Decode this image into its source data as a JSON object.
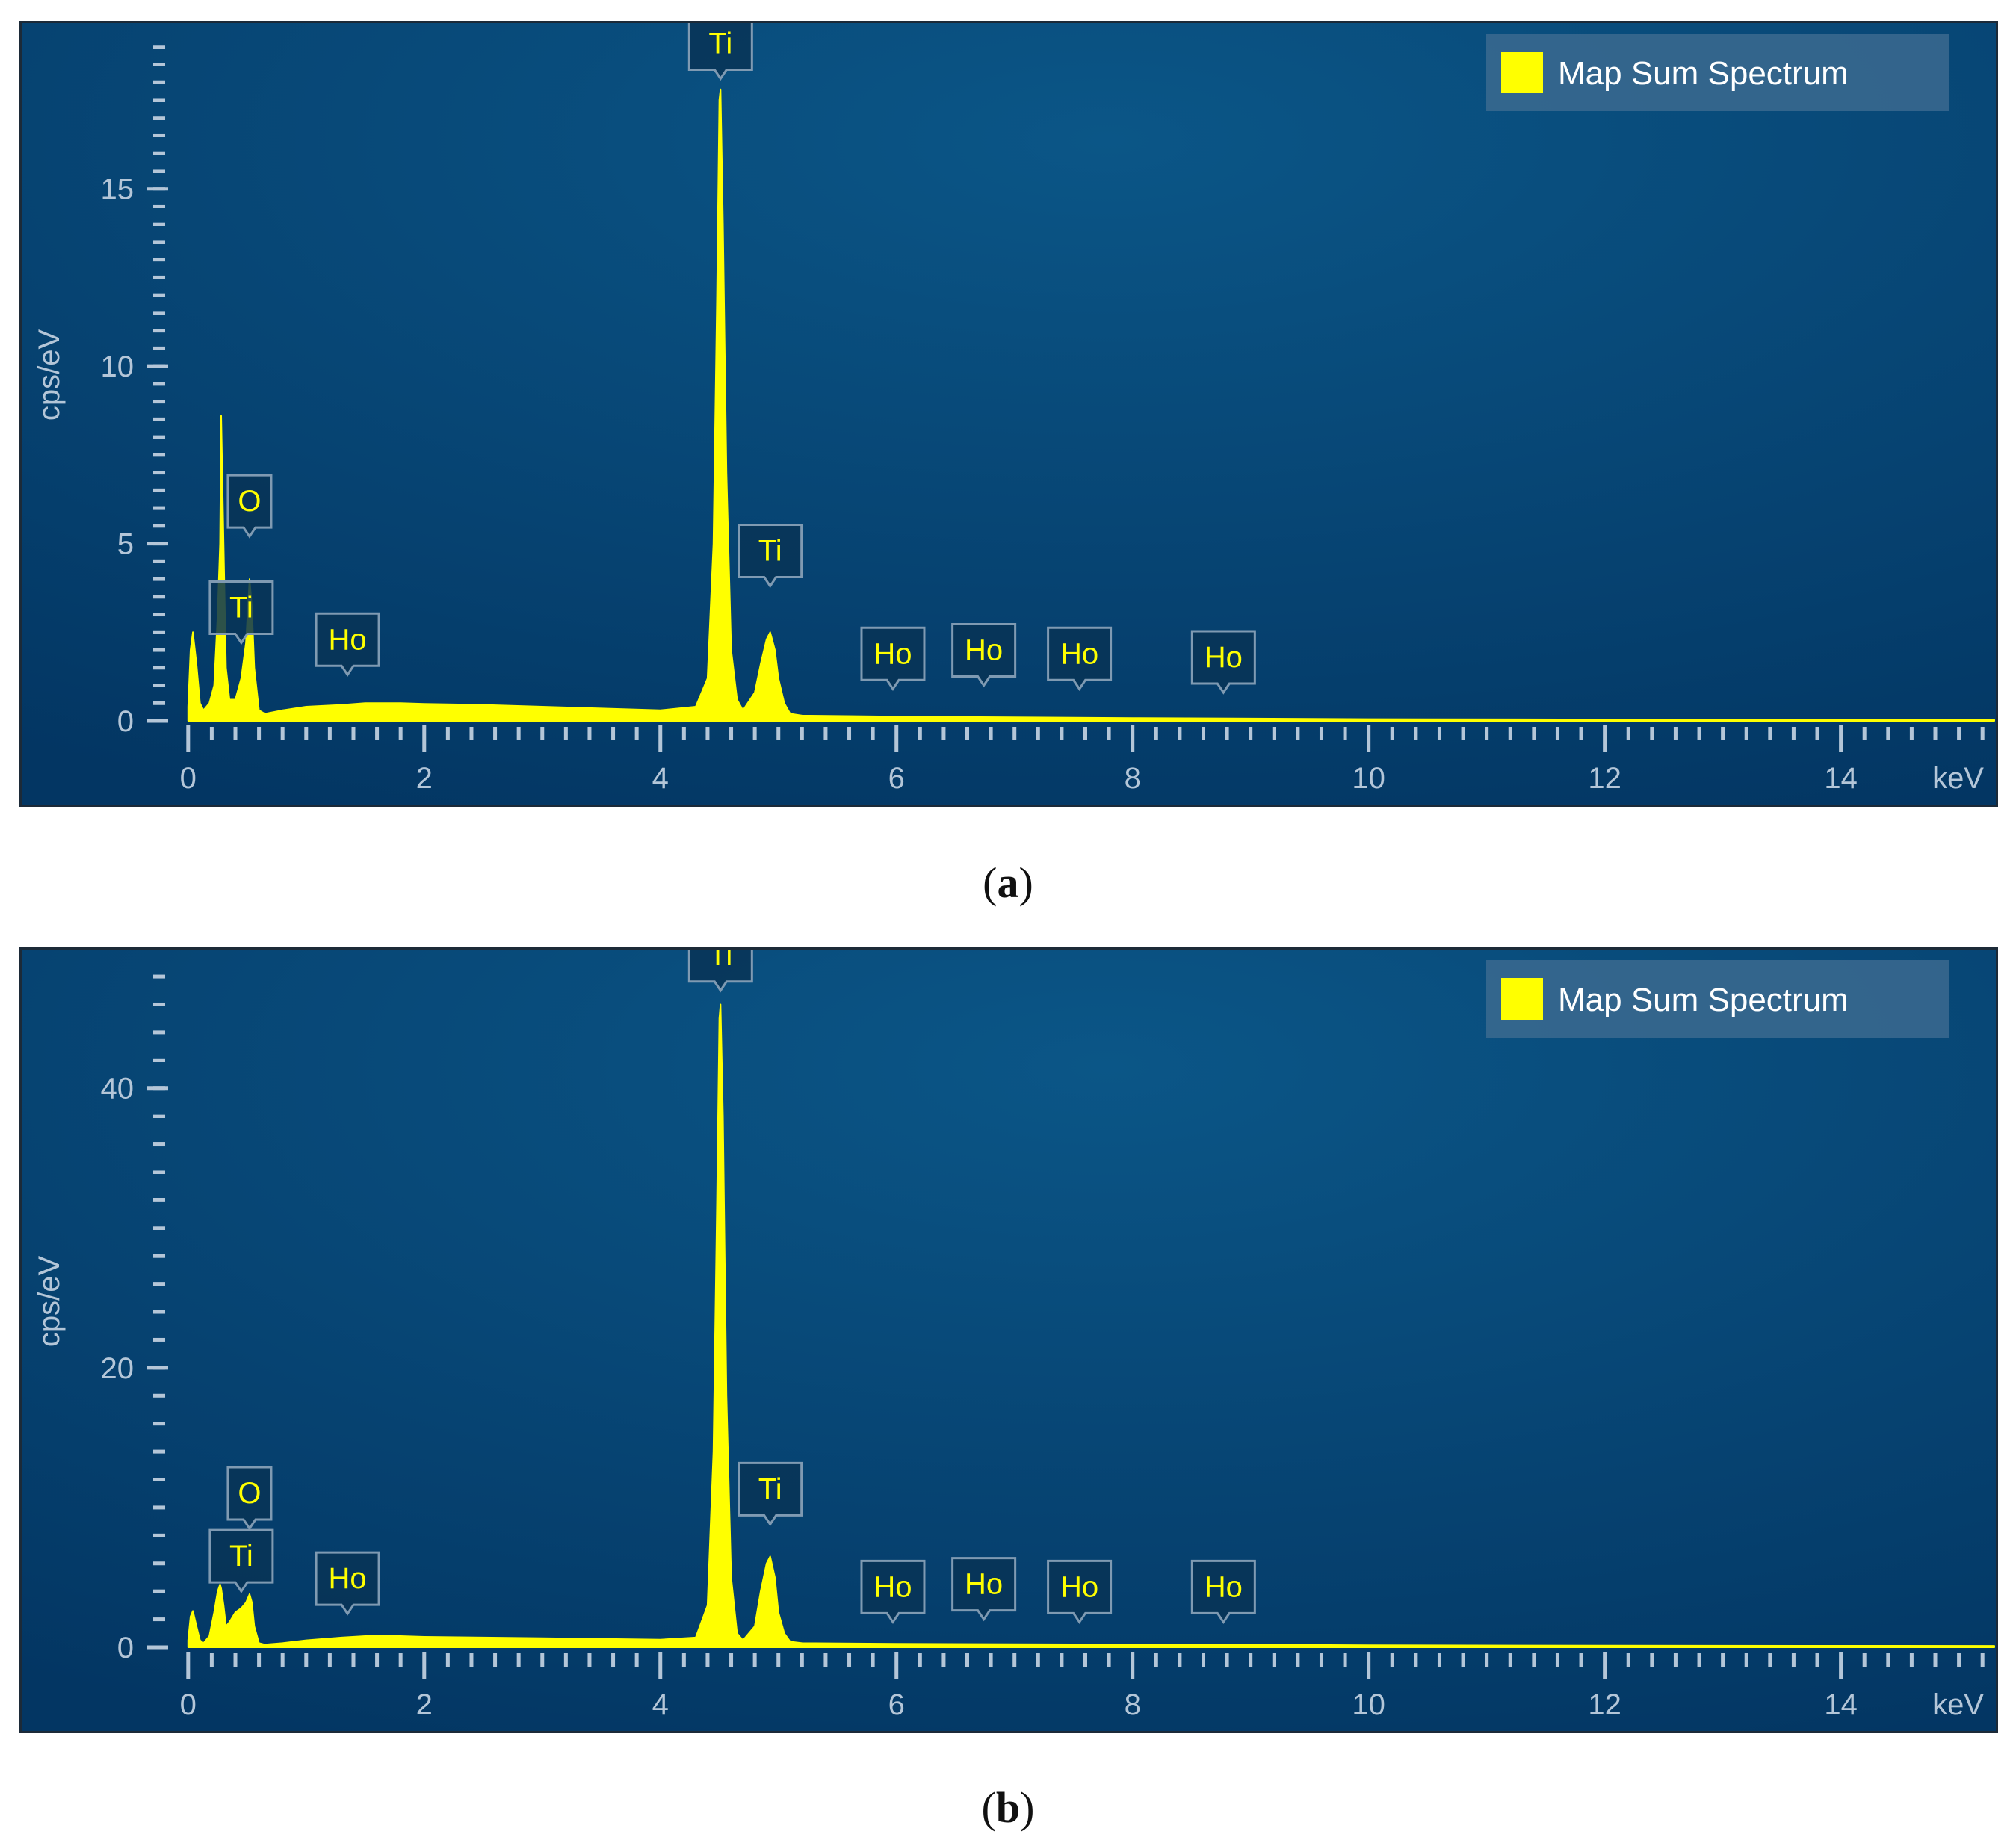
{
  "captions": [
    "(a)",
    "(b)"
  ],
  "colors": {
    "spectrum": "#ffff00",
    "background_light": "#0b5687",
    "background_dark": "#033663",
    "axis": "#b4c6d8",
    "legend_box": "#3b6a8f"
  },
  "chart_data": [
    {
      "type": "area",
      "title": "",
      "xlabel": "",
      "ylabel": "cps/eV",
      "x_unit_label": "keV",
      "xlim": [
        -0.1,
        15.3
      ],
      "ylim": [
        0,
        19.5
      ],
      "x_ticks": [
        0,
        2,
        4,
        6,
        8,
        10,
        12,
        14
      ],
      "x_tick_labels": [
        "0",
        "2",
        "4",
        "6",
        "8",
        "10",
        "12",
        "14"
      ],
      "y_ticks": [
        0,
        5,
        10,
        15
      ],
      "y_tick_labels": [
        "0",
        "5",
        "10",
        "15"
      ],
      "legend": {
        "position": "top-right",
        "entries": [
          "Map Sum Spectrum"
        ]
      },
      "series": [
        {
          "name": "Map Sum Spectrum",
          "x": [
            0.0,
            0.02,
            0.04,
            0.07,
            0.1,
            0.13,
            0.18,
            0.22,
            0.25,
            0.27,
            0.28,
            0.3,
            0.32,
            0.35,
            0.4,
            0.45,
            0.49,
            0.52,
            0.54,
            0.56,
            0.6,
            0.65,
            0.8,
            1.0,
            1.3,
            1.5,
            1.8,
            2.0,
            2.5,
            3.0,
            3.5,
            4.0,
            4.3,
            4.4,
            4.45,
            4.48,
            4.5,
            4.51,
            4.53,
            4.56,
            4.6,
            4.65,
            4.7,
            4.8,
            4.85,
            4.9,
            4.93,
            4.97,
            5.0,
            5.05,
            5.1,
            5.2,
            6.0,
            8.0,
            10.0,
            12.0,
            15.3
          ],
          "y": [
            0.4,
            2.0,
            2.5,
            1.6,
            0.5,
            0.3,
            0.5,
            1.0,
            3.0,
            5.0,
            8.6,
            5.0,
            1.5,
            0.6,
            0.6,
            1.2,
            2.2,
            4.0,
            3.2,
            1.5,
            0.3,
            0.2,
            0.3,
            0.4,
            0.45,
            0.5,
            0.5,
            0.48,
            0.45,
            0.4,
            0.35,
            0.3,
            0.4,
            1.2,
            5.0,
            12.0,
            17.5,
            17.8,
            14.0,
            7.0,
            2.0,
            0.6,
            0.3,
            0.8,
            1.6,
            2.3,
            2.5,
            2.0,
            1.2,
            0.5,
            0.2,
            0.15,
            0.12,
            0.08,
            0.05,
            0.04,
            0.03
          ]
        }
      ],
      "peak_labels": [
        {
          "element": "O",
          "x": 0.52,
          "y": 5.2
        },
        {
          "element": "Ti",
          "x": 0.45,
          "y": 2.2
        },
        {
          "element": "Ho",
          "x": 1.35,
          "y": 1.3
        },
        {
          "element": "Ti",
          "x": 4.51,
          "y": 18.1
        },
        {
          "element": "Ti",
          "x": 4.93,
          "y": 3.8
        },
        {
          "element": "Ho",
          "x": 5.97,
          "y": 0.9
        },
        {
          "element": "Ho",
          "x": 6.74,
          "y": 1.0
        },
        {
          "element": "Ho",
          "x": 7.55,
          "y": 0.9
        },
        {
          "element": "Ho",
          "x": 8.77,
          "y": 0.8
        }
      ]
    },
    {
      "type": "area",
      "title": "",
      "xlabel": "",
      "ylabel": "cps/eV",
      "x_unit_label": "keV",
      "xlim": [
        -0.1,
        15.3
      ],
      "ylim": [
        0,
        49.5
      ],
      "x_ticks": [
        0,
        2,
        4,
        6,
        8,
        10,
        12,
        14
      ],
      "x_tick_labels": [
        "0",
        "2",
        "4",
        "6",
        "8",
        "10",
        "12",
        "14"
      ],
      "y_ticks": [
        0,
        20,
        40
      ],
      "y_tick_labels": [
        "0",
        "20",
        "40"
      ],
      "legend": {
        "position": "top-right",
        "entries": [
          "Map Sum Spectrum"
        ]
      },
      "series": [
        {
          "name": "Map Sum Spectrum",
          "x": [
            0.0,
            0.02,
            0.04,
            0.07,
            0.1,
            0.13,
            0.18,
            0.22,
            0.25,
            0.27,
            0.28,
            0.3,
            0.32,
            0.35,
            0.4,
            0.45,
            0.49,
            0.52,
            0.54,
            0.56,
            0.6,
            0.65,
            0.8,
            1.0,
            1.3,
            1.5,
            1.8,
            2.0,
            2.5,
            3.0,
            3.5,
            4.0,
            4.3,
            4.4,
            4.45,
            4.48,
            4.5,
            4.51,
            4.53,
            4.56,
            4.6,
            4.65,
            4.7,
            4.8,
            4.85,
            4.9,
            4.93,
            4.97,
            5.0,
            5.05,
            5.1,
            5.2,
            6.0,
            8.0,
            10.0,
            12.0,
            15.3
          ],
          "y": [
            0.5,
            2.2,
            2.6,
            1.5,
            0.5,
            0.3,
            0.8,
            2.5,
            4.0,
            4.5,
            4.2,
            3.0,
            1.5,
            1.8,
            2.5,
            2.8,
            3.2,
            3.8,
            3.2,
            1.5,
            0.3,
            0.2,
            0.3,
            0.5,
            0.7,
            0.8,
            0.8,
            0.75,
            0.7,
            0.65,
            0.6,
            0.55,
            0.7,
            3.0,
            14.0,
            32.0,
            45.0,
            46.0,
            38.0,
            18.0,
            5.0,
            1.0,
            0.5,
            1.5,
            4.0,
            6.0,
            6.5,
            5.0,
            2.5,
            1.0,
            0.4,
            0.3,
            0.25,
            0.2,
            0.15,
            0.12,
            0.1
          ]
        }
      ],
      "peak_labels": [
        {
          "element": "O",
          "x": 0.52,
          "y": 8.5
        },
        {
          "element": "Ti",
          "x": 0.45,
          "y": 4.0
        },
        {
          "element": "Ho",
          "x": 1.35,
          "y": 2.4
        },
        {
          "element": "Ti",
          "x": 4.51,
          "y": 47.0
        },
        {
          "element": "Ti",
          "x": 4.93,
          "y": 8.8
        },
        {
          "element": "Ho",
          "x": 5.97,
          "y": 1.8
        },
        {
          "element": "Ho",
          "x": 6.74,
          "y": 2.0
        },
        {
          "element": "Ho",
          "x": 7.55,
          "y": 1.8
        },
        {
          "element": "Ho",
          "x": 8.77,
          "y": 1.8
        }
      ]
    }
  ]
}
